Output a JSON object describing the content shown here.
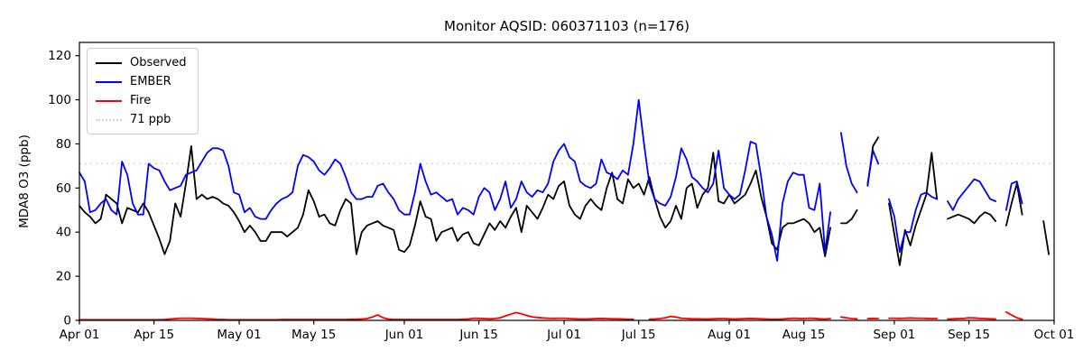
{
  "chart_data": {
    "type": "line",
    "title": "Monitor AQSID: 060371103 (n=176)",
    "xlabel": "",
    "ylabel": "MDA8 O3 (ppb)",
    "ylim": [
      0,
      126
    ],
    "yticks": [
      0,
      20,
      40,
      60,
      80,
      100,
      120
    ],
    "xtick_labels": [
      "Apr 01",
      "Apr 15",
      "May 01",
      "May 15",
      "Jun 01",
      "Jun 15",
      "Jul 01",
      "Jul 15",
      "Aug 01",
      "Aug 15",
      "Sep 01",
      "Sep 15",
      "Oct 01"
    ],
    "xtick_days": [
      0,
      14,
      30,
      44,
      61,
      75,
      91,
      105,
      122,
      136,
      153,
      167,
      183
    ],
    "x_start": "Apr 01",
    "x_end": "Sep 30",
    "x_step_days": 1,
    "total_days": 183,
    "grid": false,
    "threshold": {
      "value": 71,
      "label": "71 ppb",
      "color": "#d3d3d3",
      "style": "dotted"
    },
    "legend": {
      "position": "upper-left"
    },
    "series": [
      {
        "name": "Observed",
        "color": "#000000",
        "values": [
          52,
          49,
          47,
          44,
          46,
          57,
          55,
          53,
          44,
          51,
          50,
          49,
          53,
          49,
          43,
          37,
          30,
          36,
          53,
          47,
          62,
          79,
          55,
          57,
          55,
          56,
          55,
          53,
          52,
          49,
          45,
          40,
          43,
          40,
          36,
          36,
          40,
          40,
          40,
          38,
          40,
          42,
          48,
          59,
          54,
          47,
          48,
          44,
          43,
          50,
          55,
          53,
          30,
          40,
          43,
          44,
          45,
          43,
          42,
          41,
          32,
          31,
          34,
          43,
          54,
          47,
          46,
          36,
          40,
          41,
          42,
          36,
          39,
          40,
          35,
          34,
          39,
          44,
          41,
          45,
          42,
          47,
          51,
          40,
          52,
          49,
          46,
          51,
          57,
          55,
          61,
          63,
          52,
          48,
          46,
          52,
          55,
          52,
          50,
          60,
          67,
          55,
          53,
          64,
          60,
          62,
          57,
          65,
          55,
          47,
          42,
          45,
          52,
          46,
          60,
          62,
          51,
          57,
          60,
          76,
          54,
          53,
          57,
          53,
          55,
          57,
          62,
          68,
          56,
          47,
          35,
          32,
          42,
          44,
          44,
          45,
          46,
          44,
          40,
          42,
          29,
          42,
          null,
          44,
          44,
          46,
          50,
          null,
          61,
          79,
          83,
          null,
          53,
          39,
          25,
          41,
          34,
          43,
          50,
          57,
          76,
          55,
          null,
          46,
          47,
          48,
          47,
          46,
          44,
          47,
          49,
          48,
          45,
          null,
          43,
          53,
          62,
          48,
          null,
          null,
          null,
          45,
          30
        ]
      },
      {
        "name": "EMBER",
        "color": "#0000ff",
        "values": [
          67,
          63,
          49,
          50,
          53,
          55,
          50,
          48,
          72,
          66,
          53,
          48,
          48,
          71,
          69,
          68,
          63,
          59,
          60,
          61,
          66,
          67,
          68,
          72,
          76,
          78,
          78,
          77,
          70,
          58,
          57,
          49,
          51,
          47,
          46,
          46,
          50,
          53,
          55,
          56,
          58,
          70,
          75,
          74,
          72,
          68,
          66,
          69,
          73,
          71,
          65,
          58,
          55,
          55,
          56,
          56,
          61,
          62,
          58,
          55,
          50,
          48,
          48,
          58,
          71,
          63,
          57,
          58,
          56,
          54,
          55,
          48,
          51,
          50,
          48,
          56,
          60,
          58,
          50,
          55,
          63,
          51,
          55,
          63,
          58,
          56,
          59,
          58,
          62,
          72,
          77,
          80,
          74,
          72,
          63,
          61,
          60,
          62,
          73,
          67,
          66,
          64,
          68,
          66,
          80,
          100,
          80,
          62,
          55,
          53,
          52,
          56,
          65,
          78,
          73,
          65,
          63,
          60,
          58,
          62,
          77,
          60,
          57,
          55,
          57,
          68,
          81,
          80,
          65,
          47,
          39,
          27,
          53,
          63,
          67,
          66,
          66,
          51,
          50,
          62,
          31,
          49,
          null,
          85,
          70,
          62,
          58,
          null,
          62,
          77,
          71,
          null,
          55,
          47,
          31,
          40,
          40,
          50,
          57,
          58,
          56,
          55,
          null,
          54,
          50,
          55,
          58,
          61,
          64,
          63,
          59,
          55,
          54,
          null,
          50,
          62,
          63,
          53,
          null,
          null,
          null,
          null,
          null
        ]
      },
      {
        "name": "Fire",
        "color": "#ff0000",
        "values": [
          0.3,
          0.3,
          0.3,
          0.3,
          0.3,
          0.3,
          0.3,
          0.3,
          0.3,
          0.3,
          0.3,
          0.3,
          0.3,
          0.3,
          0.3,
          0.3,
          0.4,
          0.6,
          0.8,
          1,
          1,
          1,
          0.9,
          0.8,
          0.7,
          0.6,
          0.4,
          0.4,
          0.3,
          0.3,
          0.3,
          0.3,
          0.3,
          0.3,
          0.3,
          0.3,
          0.3,
          0.3,
          0.4,
          0.4,
          0.4,
          0.4,
          0.4,
          0.4,
          0.4,
          0.4,
          0.4,
          0.4,
          0.4,
          0.4,
          0.4,
          0.5,
          0.5,
          0.6,
          0.8,
          1.5,
          2.5,
          1.2,
          0.6,
          0.4,
          0.4,
          0.4,
          0.4,
          0.4,
          0.4,
          0.4,
          0.4,
          0.4,
          0.4,
          0.4,
          0.4,
          0.4,
          0.5,
          0.6,
          1,
          0.9,
          0.8,
          0.7,
          0.8,
          1.2,
          2,
          2.8,
          3.5,
          3,
          2.2,
          1.6,
          1.3,
          1.1,
          1,
          0.9,
          1,
          1,
          0.8,
          0.7,
          0.6,
          0.6,
          0.7,
          0.8,
          0.9,
          0.8,
          0.7,
          0.7,
          0.6,
          0.5,
          0.5,
          null,
          null,
          0.5,
          0.6,
          0.8,
          1.2,
          1.8,
          1.5,
          1,
          0.8,
          0.7,
          0.7,
          0.6,
          0.6,
          0.7,
          0.8,
          0.8,
          0.7,
          0.6,
          0.7,
          0.8,
          0.9,
          0.8,
          0.7,
          0.6,
          0.5,
          0.5,
          0.6,
          0.8,
          1,
          0.9,
          0.8,
          1,
          0.9,
          0.7,
          0.6,
          0.8,
          null,
          1.5,
          1.2,
          0.8,
          0.7,
          null,
          0.8,
          0.9,
          0.8,
          null,
          1,
          1,
          0.9,
          1,
          1.1,
          1,
          1,
          0.9,
          0.8,
          0.8,
          null,
          0.6,
          0.7,
          0.8,
          0.9,
          1.2,
          1.1,
          0.9,
          0.8,
          0.7,
          0.6,
          null,
          3.8,
          2.4,
          1.2,
          0.5,
          null,
          null,
          null,
          null,
          null
        ]
      }
    ]
  }
}
